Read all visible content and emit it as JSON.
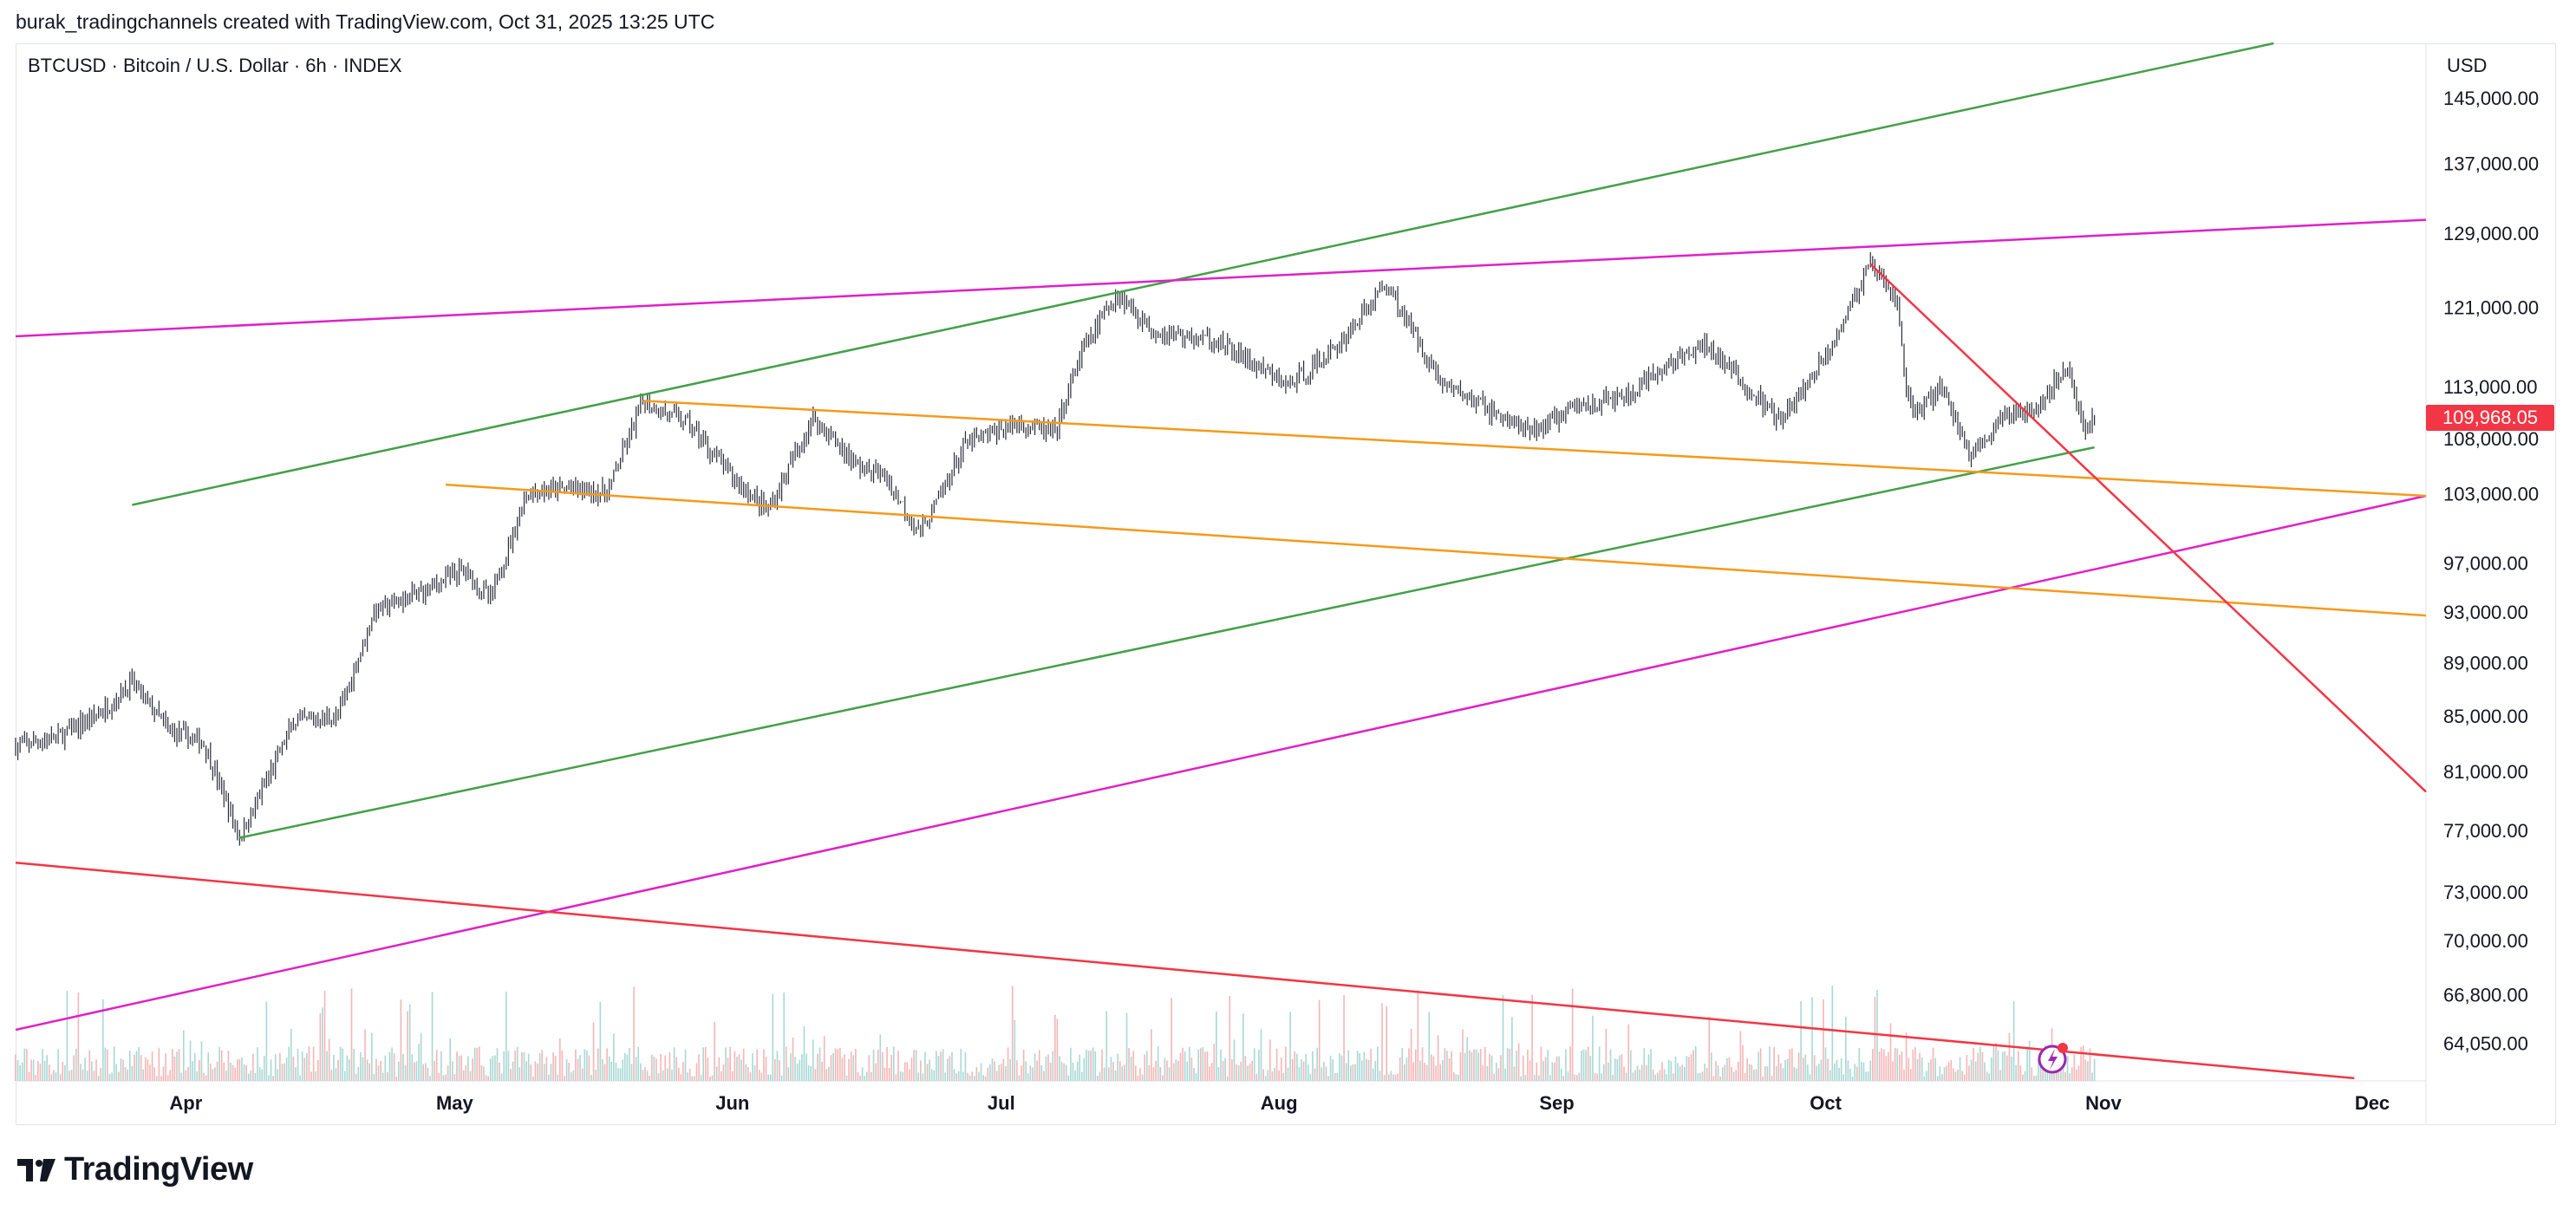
{
  "header": {
    "attribution": "burak_tradingchannels created with TradingView.com, Oct 31, 2025 13:25 UTC"
  },
  "symbol": {
    "title": "BTCUSD · Bitcoin / U.S. Dollar · 6h · INDEX"
  },
  "price_scale": {
    "currency": "USD",
    "last_price_label": "109,968.05"
  },
  "footer": {
    "brand": "TradingView"
  },
  "colors": {
    "candles": "#2a2e39",
    "green_channel": "#43a047",
    "magenta": "#e020c8",
    "orange": "#f59a1a",
    "red": "#f23645",
    "volume_up": "#a8d8d4",
    "volume_down": "#f5b5b5"
  },
  "chart_data": {
    "type": "candlestick",
    "title": "BTCUSD · Bitcoin / U.S. Dollar · 6h · INDEX",
    "x_range": [
      "2025-03-13",
      "2025-12-07"
    ],
    "x_tick_labels": [
      "Apr",
      "May",
      "Jun",
      "Jul",
      "Aug",
      "Sep",
      "Oct",
      "Nov",
      "Dec"
    ],
    "x_tick_dates": [
      "2025-04-01",
      "2025-05-01",
      "2025-06-01",
      "2025-07-01",
      "2025-08-01",
      "2025-09-01",
      "2025-10-01",
      "2025-11-01",
      "2025-12-01"
    ],
    "y_scale": "log",
    "y_range": [
      62000,
      152000
    ],
    "y_tick_labels": [
      "145,000.00",
      "137,000.00",
      "129,000.00",
      "121,000.00",
      "113,000.00",
      "108,000.00",
      "103,000.00",
      "97,000.00",
      "93,000.00",
      "89,000.00",
      "85,000.00",
      "81,000.00",
      "77,000.00",
      "73,000.00",
      "70,000.00",
      "66,800.00",
      "64,050.00"
    ],
    "y_ticks": [
      145000,
      137000,
      129000,
      121000,
      113000,
      108000,
      103000,
      97000,
      93000,
      89000,
      85000,
      81000,
      77000,
      73000,
      70000,
      66800,
      64050
    ],
    "last_price": 109968.05,
    "price_path": [
      [
        "2025-03-13",
        82800
      ],
      [
        "2025-03-18",
        83500
      ],
      [
        "2025-03-23",
        85500
      ],
      [
        "2025-03-26",
        87500
      ],
      [
        "2025-03-30",
        84000
      ],
      [
        "2025-04-03",
        83000
      ],
      [
        "2025-04-07",
        76500
      ],
      [
        "2025-04-09",
        79000
      ],
      [
        "2025-04-13",
        84500
      ],
      [
        "2025-04-18",
        85000
      ],
      [
        "2025-04-22",
        93000
      ],
      [
        "2025-04-27",
        94500
      ],
      [
        "2025-05-02",
        96500
      ],
      [
        "2025-05-05",
        94000
      ],
      [
        "2025-05-09",
        103000
      ],
      [
        "2025-05-14",
        103500
      ],
      [
        "2025-05-18",
        103000
      ],
      [
        "2025-05-22",
        111500
      ],
      [
        "2025-05-27",
        109500
      ],
      [
        "2025-06-01",
        104500
      ],
      [
        "2025-06-05",
        101500
      ],
      [
        "2025-06-10",
        110000
      ],
      [
        "2025-06-15",
        105500
      ],
      [
        "2025-06-18",
        104500
      ],
      [
        "2025-06-22",
        99500
      ],
      [
        "2025-06-27",
        107500
      ],
      [
        "2025-07-03",
        109500
      ],
      [
        "2025-07-07",
        108500
      ],
      [
        "2025-07-10",
        116500
      ],
      [
        "2025-07-14",
        122500
      ],
      [
        "2025-07-18",
        118500
      ],
      [
        "2025-07-25",
        117500
      ],
      [
        "2025-08-02",
        113000
      ],
      [
        "2025-08-07",
        116500
      ],
      [
        "2025-08-13",
        123500
      ],
      [
        "2025-08-19",
        113500
      ],
      [
        "2025-08-25",
        110500
      ],
      [
        "2025-08-29",
        108500
      ],
      [
        "2025-09-03",
        111000
      ],
      [
        "2025-09-09",
        112000
      ],
      [
        "2025-09-14",
        115500
      ],
      [
        "2025-09-18",
        117000
      ],
      [
        "2025-09-22",
        113000
      ],
      [
        "2025-09-26",
        109500
      ],
      [
        "2025-10-01",
        116000
      ],
      [
        "2025-10-06",
        125500
      ],
      [
        "2025-10-09",
        121500
      ],
      [
        "2025-10-10",
        112500
      ],
      [
        "2025-10-11",
        110500
      ],
      [
        "2025-10-14",
        113000
      ],
      [
        "2025-10-17",
        106500
      ],
      [
        "2025-10-21",
        110000
      ],
      [
        "2025-10-25",
        111500
      ],
      [
        "2025-10-28",
        115000
      ],
      [
        "2025-10-30",
        108500
      ],
      [
        "2025-10-31",
        109968
      ]
    ],
    "trendlines": [
      {
        "color": "green",
        "points": [
          [
            "2025-04-07",
            76500
          ],
          [
            "2025-10-31",
            107200
          ]
        ]
      },
      {
        "color": "green",
        "points": [
          [
            "2025-03-26",
            102000
          ],
          [
            "2025-11-20",
            152000
          ]
        ]
      },
      {
        "color": "magenta",
        "points": [
          [
            "2025-03-13",
            118000
          ],
          [
            "2025-12-07",
            130500
          ]
        ]
      },
      {
        "color": "magenta",
        "points": [
          [
            "2025-03-13",
            64800
          ],
          [
            "2025-12-07",
            102800
          ]
        ]
      },
      {
        "color": "orange",
        "points": [
          [
            "2025-05-22",
            111600
          ],
          [
            "2025-12-07",
            102800
          ]
        ]
      },
      {
        "color": "orange",
        "points": [
          [
            "2025-04-30",
            103800
          ],
          [
            "2025-12-07",
            92700
          ]
        ]
      },
      {
        "color": "red",
        "points": [
          [
            "2025-10-06",
            125600
          ],
          [
            "2025-12-07",
            79600
          ]
        ]
      }
    ],
    "volume_pane_lines": [
      {
        "color": "red",
        "points": [
          [
            "2025-03-13",
            0.82
          ],
          [
            "2025-11-29",
            0.01
          ]
        ]
      }
    ]
  }
}
